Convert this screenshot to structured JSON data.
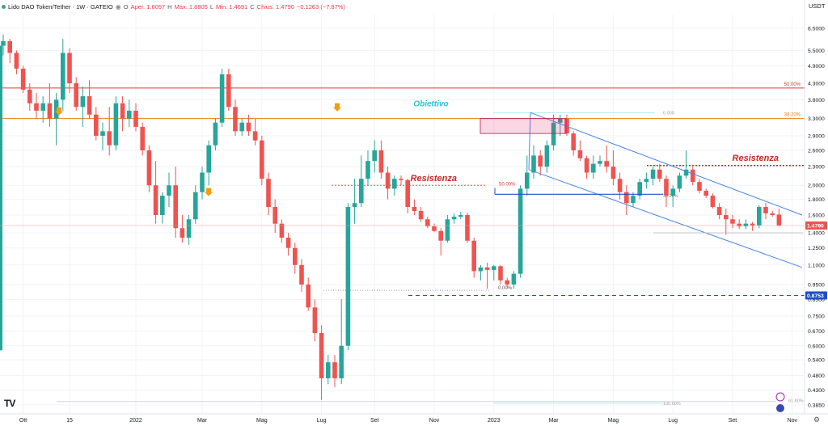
{
  "header": {
    "symbol": "Lido DAO Token/Tether · 1W · GATEIO",
    "open_label": "O",
    "open_value": "Aper. 1.6057",
    "high_label": "H",
    "high_value": "Max. 1.6805",
    "low_label": "L",
    "low_value": "Min. 1.4691",
    "close_label": "C",
    "close_value": "Chius. 1.4790",
    "change": "−0.1263 (−7.87%)"
  },
  "currency": "USDT",
  "logo": "TV",
  "colors": {
    "up": "#26a69a",
    "down": "#ef5350",
    "fib50": "#e53935",
    "fib38": "#f57c00",
    "channel": "#4a86e8",
    "level": "#1e4fc4"
  },
  "chart_data": {
    "type": "candlestick",
    "scale": "log",
    "ylim": [
      0.36,
      7.2
    ],
    "y_ticks": [
      "6.5000",
      "5.5000",
      "4.9000",
      "4.3000",
      "3.8000",
      "3.3000",
      "2.9000",
      "2.6000",
      "2.3000",
      "2.0000",
      "1.8000",
      "1.6000",
      "1.4000",
      "1.2500",
      "1.1000",
      "0.9500",
      "0.8500",
      "0.7500",
      "0.6700",
      "0.6000",
      "0.5400",
      "0.4800",
      "0.4300",
      "0.3850"
    ],
    "x_tick_labels": [
      "Ott",
      "15",
      "2022",
      "Mar",
      "Mag",
      "Lug",
      "Set",
      "Nov",
      "2023",
      "Mar",
      "Mag",
      "Lug",
      "Set",
      "Nov"
    ],
    "price_labels": [
      {
        "text": "1.4790",
        "value": 1.479,
        "color": "#ef5350"
      },
      {
        "text": "0.8753",
        "value": 0.8753,
        "color": "#1e4fc4"
      }
    ],
    "candles": [
      [
        5.7,
        6.2,
        5.3,
        5.9
      ],
      [
        5.9,
        6.0,
        5.0,
        5.4
      ],
      [
        5.4,
        5.5,
        4.6,
        4.8
      ],
      [
        4.8,
        4.9,
        4.0,
        4.1
      ],
      [
        4.1,
        4.3,
        3.5,
        3.7
      ],
      [
        3.7,
        4.0,
        3.3,
        3.5
      ],
      [
        3.5,
        3.9,
        3.2,
        3.7
      ],
      [
        3.7,
        4.3,
        3.1,
        3.3
      ],
      [
        3.3,
        4.0,
        2.7,
        3.8
      ],
      [
        3.8,
        6.0,
        3.5,
        5.4
      ],
      [
        5.4,
        5.6,
        4.0,
        4.3
      ],
      [
        4.3,
        4.5,
        3.5,
        3.6
      ],
      [
        3.6,
        4.2,
        3.1,
        3.9
      ],
      [
        3.9,
        4.4,
        3.3,
        3.4
      ],
      [
        3.4,
        3.6,
        2.8,
        2.9
      ],
      [
        2.9,
        3.2,
        2.6,
        3.0
      ],
      [
        3.0,
        3.6,
        2.5,
        2.7
      ],
      [
        2.7,
        3.9,
        2.6,
        3.7
      ],
      [
        3.7,
        3.9,
        3.0,
        3.3
      ],
      [
        3.3,
        3.8,
        3.1,
        3.5
      ],
      [
        3.5,
        3.7,
        3.0,
        3.1
      ],
      [
        3.1,
        3.2,
        2.5,
        2.6
      ],
      [
        2.6,
        2.7,
        1.9,
        2.0
      ],
      [
        2.0,
        2.4,
        1.5,
        1.6
      ],
      [
        1.6,
        1.9,
        1.5,
        1.85
      ],
      [
        1.85,
        2.2,
        1.7,
        2.0
      ],
      [
        2.0,
        2.3,
        1.35,
        1.45
      ],
      [
        1.45,
        1.6,
        1.3,
        1.35
      ],
      [
        1.35,
        1.6,
        1.28,
        1.55
      ],
      [
        1.55,
        2.0,
        1.5,
        1.9
      ],
      [
        1.9,
        2.3,
        1.8,
        2.2
      ],
      [
        2.2,
        2.8,
        2.0,
        2.7
      ],
      [
        2.7,
        3.3,
        2.6,
        3.2
      ],
      [
        3.2,
        4.8,
        3.1,
        4.6
      ],
      [
        4.6,
        4.8,
        3.5,
        3.6
      ],
      [
        3.6,
        3.8,
        2.9,
        3.0
      ],
      [
        3.0,
        3.3,
        2.9,
        3.2
      ],
      [
        3.2,
        3.4,
        2.9,
        3.0
      ],
      [
        3.0,
        3.3,
        2.7,
        2.8
      ],
      [
        2.8,
        2.9,
        2.0,
        2.1
      ],
      [
        2.1,
        2.2,
        1.6,
        1.7
      ],
      [
        1.7,
        1.8,
        1.4,
        1.5
      ],
      [
        1.5,
        1.55,
        1.3,
        1.35
      ],
      [
        1.35,
        1.4,
        1.18,
        1.25
      ],
      [
        1.25,
        1.3,
        1.03,
        1.1
      ],
      [
        1.1,
        1.15,
        0.9,
        0.95
      ],
      [
        0.95,
        1.0,
        0.78,
        0.8
      ],
      [
        0.8,
        0.85,
        0.62,
        0.66
      ],
      [
        0.66,
        0.7,
        0.4,
        0.47
      ],
      [
        0.47,
        0.56,
        0.45,
        0.53
      ],
      [
        0.53,
        0.56,
        0.44,
        0.47
      ],
      [
        0.47,
        0.85,
        0.45,
        0.6
      ],
      [
        0.6,
        1.75,
        0.58,
        1.7
      ],
      [
        1.7,
        2.1,
        1.5,
        1.75
      ],
      [
        1.75,
        2.5,
        1.7,
        2.1
      ],
      [
        2.1,
        2.6,
        2.0,
        2.4
      ],
      [
        2.4,
        2.8,
        2.2,
        2.6
      ],
      [
        2.6,
        2.8,
        2.1,
        2.2
      ],
      [
        2.2,
        2.3,
        1.8,
        1.95
      ],
      [
        1.95,
        2.15,
        1.85,
        2.1
      ],
      [
        2.1,
        2.15,
        2.0,
        2.08
      ],
      [
        2.08,
        2.1,
        1.62,
        1.7
      ],
      [
        1.7,
        1.8,
        1.6,
        1.65
      ],
      [
        1.65,
        1.7,
        1.52,
        1.55
      ],
      [
        1.55,
        1.58,
        1.45,
        1.47
      ],
      [
        1.47,
        1.5,
        1.41,
        1.42
      ],
      [
        1.42,
        1.45,
        1.18,
        1.32
      ],
      [
        1.32,
        1.6,
        1.3,
        1.55
      ],
      [
        1.55,
        1.62,
        1.5,
        1.58
      ],
      [
        1.58,
        1.64,
        1.55,
        1.6
      ],
      [
        1.6,
        1.63,
        1.3,
        1.32
      ],
      [
        1.32,
        1.35,
        1.0,
        1.05
      ],
      [
        1.05,
        1.1,
        0.98,
        1.08
      ],
      [
        1.08,
        1.12,
        0.92,
        1.06
      ],
      [
        1.06,
        1.1,
        0.98,
        1.09
      ],
      [
        1.09,
        1.1,
        0.95,
        0.98
      ],
      [
        0.98,
        1.0,
        0.92,
        0.95
      ],
      [
        0.95,
        1.05,
        0.92,
        1.03
      ],
      [
        1.03,
        2.0,
        1.0,
        1.95
      ],
      [
        1.95,
        2.5,
        1.85,
        2.2
      ],
      [
        2.2,
        2.7,
        2.1,
        2.5
      ],
      [
        2.5,
        2.6,
        2.15,
        2.3
      ],
      [
        2.3,
        2.8,
        2.2,
        2.7
      ],
      [
        2.7,
        3.4,
        2.6,
        3.2
      ],
      [
        3.2,
        3.4,
        2.9,
        3.3
      ],
      [
        3.3,
        3.4,
        2.9,
        2.95
      ],
      [
        2.95,
        3.0,
        2.5,
        2.6
      ],
      [
        2.6,
        2.8,
        2.4,
        2.45
      ],
      [
        2.45,
        2.5,
        2.1,
        2.2
      ],
      [
        2.2,
        2.5,
        2.1,
        2.35
      ],
      [
        2.35,
        2.5,
        2.3,
        2.4
      ],
      [
        2.4,
        2.7,
        2.2,
        2.3
      ],
      [
        2.3,
        2.6,
        2.0,
        2.1
      ],
      [
        2.1,
        2.2,
        1.8,
        1.9
      ],
      [
        1.9,
        2.0,
        1.6,
        1.75
      ],
      [
        1.75,
        1.9,
        1.7,
        1.85
      ],
      [
        1.85,
        2.1,
        1.8,
        2.05
      ],
      [
        2.05,
        2.2,
        1.95,
        2.1
      ],
      [
        2.1,
        2.3,
        2.0,
        2.25
      ],
      [
        2.25,
        2.35,
        2.05,
        2.1
      ],
      [
        2.1,
        2.15,
        1.7,
        1.85
      ],
      [
        1.85,
        2.0,
        1.7,
        1.95
      ],
      [
        1.95,
        2.2,
        1.9,
        2.15
      ],
      [
        2.15,
        2.6,
        2.1,
        2.25
      ],
      [
        2.25,
        2.3,
        2.0,
        2.05
      ],
      [
        2.05,
        2.1,
        1.88,
        1.92
      ],
      [
        1.92,
        1.95,
        1.82,
        1.85
      ],
      [
        1.85,
        1.88,
        1.68,
        1.7
      ],
      [
        1.7,
        1.75,
        1.55,
        1.6
      ],
      [
        1.6,
        1.68,
        1.38,
        1.55
      ],
      [
        1.55,
        1.6,
        1.45,
        1.5
      ],
      [
        1.5,
        1.55,
        1.44,
        1.47
      ],
      [
        1.47,
        1.55,
        1.44,
        1.5
      ],
      [
        1.5,
        1.52,
        1.42,
        1.48
      ],
      [
        1.48,
        1.72,
        1.45,
        1.7
      ],
      [
        1.7,
        1.75,
        1.55,
        1.62
      ],
      [
        1.62,
        1.65,
        1.58,
        1.6
      ],
      [
        1.6057,
        1.6805,
        1.4691,
        1.479
      ]
    ],
    "horizontal_levels": [
      {
        "label": "50.00%",
        "value": 4.15
      },
      {
        "label": "38.20%",
        "value": 3.3
      },
      {
        "label": "Resistenza",
        "value": 2.32
      },
      {
        "label": "Resistenza",
        "value": 2.0
      },
      {
        "label": "50.00%",
        "value": 2.02
      },
      {
        "label": "38.20%",
        "value": 1.86
      },
      {
        "label": "0.000",
        "value": 3.45
      },
      {
        "label": "0.00%",
        "value": 0.91
      },
      {
        "label": "100.00%",
        "value": 0.39
      },
      {
        "label": "61.80%",
        "value": 0.395
      },
      {
        "label": "0.8753",
        "value": 0.8753
      }
    ],
    "annotations": [
      "Obiettivo",
      "Resistenza",
      "Resistenza"
    ]
  }
}
